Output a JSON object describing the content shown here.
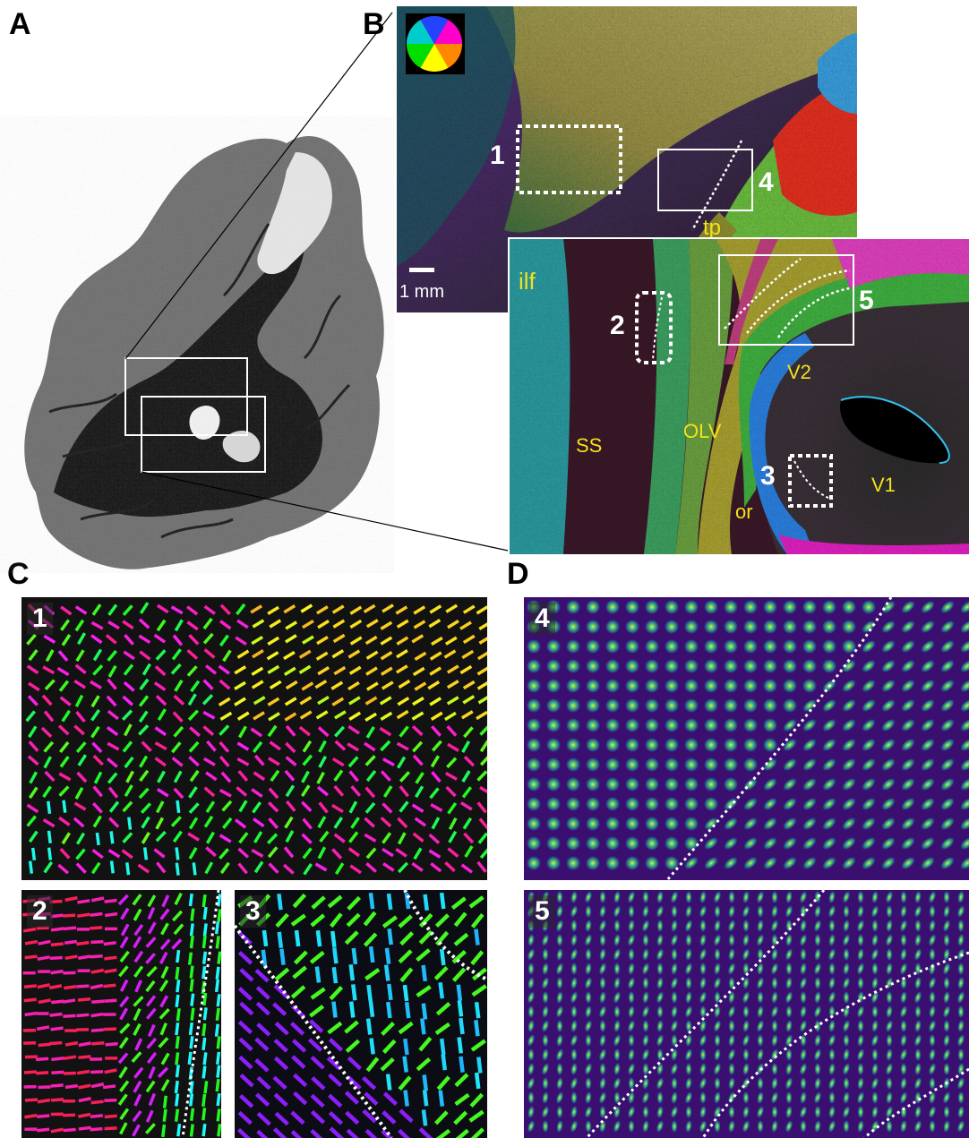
{
  "panels": {
    "a": {
      "label": "A"
    },
    "b": {
      "label": "B"
    },
    "c": {
      "label": "C"
    },
    "d": {
      "label": "D"
    }
  },
  "panel_b": {
    "scale_bar": "1 mm",
    "boxes": [
      "1",
      "2",
      "3",
      "4",
      "5"
    ],
    "regions": [
      "ilf",
      "tp",
      "SS",
      "OLV",
      "V2",
      "or",
      "V1"
    ]
  },
  "panel_c": {
    "insets": [
      "1",
      "2",
      "3"
    ]
  },
  "panel_d": {
    "insets": [
      "4",
      "5"
    ]
  },
  "colors": {
    "label_yellow": "#f2e21a",
    "odf_background": "#3b0f6f",
    "odf_peak": "#e8f02a"
  }
}
